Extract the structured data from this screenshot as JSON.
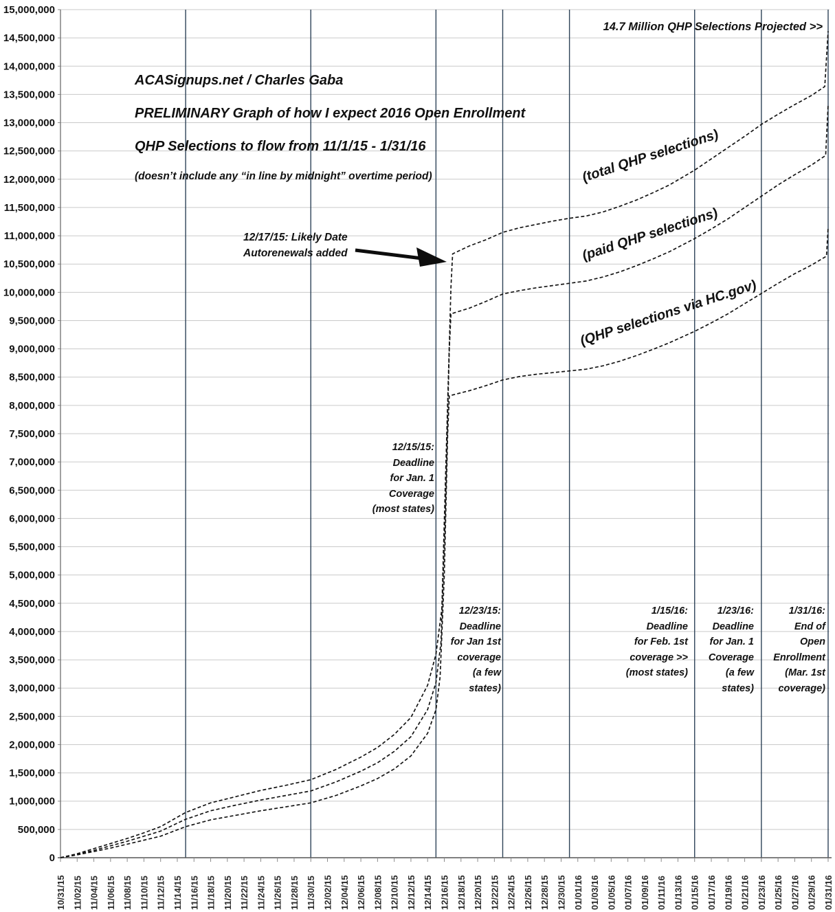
{
  "chart_data": {
    "type": "line",
    "title_lines": [
      "ACASignups.net / Charles Gaba",
      "PRELIMINARY Graph of how I expect 2016 Open Enrollment",
      "QHP Selections to flow from 11/1/15 - 1/31/16",
      "(doesn’t include any “in line by midnight” overtime period)"
    ],
    "projected_note": "14.7 Million QHP Selections Projected >>",
    "autorenewal_note": "12/17/15: Likely Date\nAutorenewals added",
    "deadlines": {
      "dec15": "12/15/15:\nDeadline\nfor Jan. 1\nCoverage\n(most states)",
      "dec23": "12/23/15:\nDeadline\nfor Jan 1st\ncoverage\n(a few\nstates)",
      "jan15": "1/15/16:\nDeadline\nfor Feb. 1st\ncoverage >>\n(most states)",
      "jan23": "1/23/16:\nDeadline\nfor Jan. 1\nCoverage\n(a few\nstates)",
      "jan31": "1/31/16:\nEnd of\nOpen\nEnrollment\n(Mar. 1st\ncoverage)"
    },
    "x_axis": {
      "range_days": [
        0,
        92
      ],
      "days_per_tick": 2,
      "tick_labels": [
        "10/31/15",
        "11/02/15",
        "11/04/15",
        "11/06/15",
        "11/08/15",
        "11/10/15",
        "11/12/15",
        "11/14/15",
        "11/16/15",
        "11/18/15",
        "11/20/15",
        "11/22/15",
        "11/24/15",
        "11/26/15",
        "11/28/15",
        "11/30/15",
        "12/02/15",
        "12/04/15",
        "12/06/15",
        "12/08/15",
        "12/10/15",
        "12/12/15",
        "12/14/15",
        "12/16/15",
        "12/18/15",
        "12/20/15",
        "12/22/15",
        "12/24/15",
        "12/26/15",
        "12/28/15",
        "12/30/15",
        "01/01/16",
        "01/03/16",
        "01/05/16",
        "01/07/16",
        "01/09/16",
        "01/11/16",
        "01/13/16",
        "01/15/16",
        "01/17/16",
        "01/19/16",
        "01/21/16",
        "01/23/16",
        "01/25/16",
        "01/27/16",
        "01/29/16",
        "01/31/16"
      ]
    },
    "y_axis": {
      "min": 0,
      "max": 15000000,
      "step": 500000,
      "tick_labels": [
        "0",
        "500,000",
        "1,000,000",
        "1,500,000",
        "2,000,000",
        "2,500,000",
        "3,000,000",
        "3,500,000",
        "4,000,000",
        "4,500,000",
        "5,000,000",
        "5,500,000",
        "6,000,000",
        "6,500,000",
        "7,000,000",
        "7,500,000",
        "8,000,000",
        "8,500,000",
        "9,000,000",
        "9,500,000",
        "10,000,000",
        "10,500,000",
        "11,000,000",
        "11,500,000",
        "12,000,000",
        "12,500,000",
        "13,000,000",
        "13,500,000",
        "14,000,000",
        "14,500,000",
        "15,000,000"
      ]
    },
    "emphasis_gridline_days": [
      15,
      30,
      45,
      53,
      61,
      76,
      84,
      92
    ],
    "series": [
      {
        "name": "(total QHP selections)",
        "final_value_millions": 14.65,
        "points_day_millions": [
          [
            0,
            0
          ],
          [
            2,
            0.07
          ],
          [
            4,
            0.16
          ],
          [
            6,
            0.25
          ],
          [
            8,
            0.34
          ],
          [
            10,
            0.44
          ],
          [
            12,
            0.55
          ],
          [
            15,
            0.8
          ],
          [
            18,
            0.97
          ],
          [
            21,
            1.08
          ],
          [
            24,
            1.19
          ],
          [
            27,
            1.28
          ],
          [
            30,
            1.38
          ],
          [
            33,
            1.56
          ],
          [
            36,
            1.78
          ],
          [
            38,
            1.95
          ],
          [
            40,
            2.18
          ],
          [
            42,
            2.48
          ],
          [
            44,
            3.05
          ],
          [
            45,
            3.6
          ],
          [
            45.7,
            4.4
          ],
          [
            46.2,
            7.0
          ],
          [
            46.8,
            10.1
          ],
          [
            47,
            10.68
          ],
          [
            49,
            10.82
          ],
          [
            51,
            10.93
          ],
          [
            53,
            11.06
          ],
          [
            55,
            11.14
          ],
          [
            57,
            11.2
          ],
          [
            59,
            11.26
          ],
          [
            61,
            11.31
          ],
          [
            63,
            11.35
          ],
          [
            65,
            11.42
          ],
          [
            67,
            11.52
          ],
          [
            69,
            11.63
          ],
          [
            71,
            11.76
          ],
          [
            73,
            11.9
          ],
          [
            76,
            12.16
          ],
          [
            78,
            12.36
          ],
          [
            80,
            12.56
          ],
          [
            82,
            12.76
          ],
          [
            84,
            12.97
          ],
          [
            86,
            13.15
          ],
          [
            88,
            13.32
          ],
          [
            90,
            13.48
          ],
          [
            91.6,
            13.64
          ],
          [
            92,
            14.62
          ]
        ]
      },
      {
        "name": "(paid QHP selections)",
        "final_value_millions": 13.3,
        "points_day_millions": [
          [
            0,
            0
          ],
          [
            2,
            0.06
          ],
          [
            4,
            0.13
          ],
          [
            6,
            0.21
          ],
          [
            8,
            0.29
          ],
          [
            10,
            0.38
          ],
          [
            12,
            0.47
          ],
          [
            15,
            0.68
          ],
          [
            18,
            0.83
          ],
          [
            21,
            0.93
          ],
          [
            24,
            1.02
          ],
          [
            27,
            1.1
          ],
          [
            30,
            1.18
          ],
          [
            33,
            1.34
          ],
          [
            36,
            1.53
          ],
          [
            38,
            1.68
          ],
          [
            40,
            1.88
          ],
          [
            42,
            2.14
          ],
          [
            44,
            2.62
          ],
          [
            45,
            3.1
          ],
          [
            45.6,
            3.8
          ],
          [
            46.1,
            6.0
          ],
          [
            46.6,
            9.0
          ],
          [
            46.8,
            9.62
          ],
          [
            49,
            9.72
          ],
          [
            51,
            9.84
          ],
          [
            53,
            9.97
          ],
          [
            55,
            10.03
          ],
          [
            57,
            10.08
          ],
          [
            59,
            10.12
          ],
          [
            61,
            10.16
          ],
          [
            63,
            10.2
          ],
          [
            65,
            10.27
          ],
          [
            67,
            10.36
          ],
          [
            69,
            10.47
          ],
          [
            71,
            10.59
          ],
          [
            73,
            10.72
          ],
          [
            76,
            10.95
          ],
          [
            78,
            11.12
          ],
          [
            80,
            11.3
          ],
          [
            82,
            11.5
          ],
          [
            84,
            11.7
          ],
          [
            86,
            11.9
          ],
          [
            88,
            12.08
          ],
          [
            90,
            12.25
          ],
          [
            91.7,
            12.42
          ],
          [
            92,
            13.32
          ]
        ]
      },
      {
        "name": "(QHP selections via HC.gov)",
        "final_value_millions": 11.15,
        "points_day_millions": [
          [
            0,
            0
          ],
          [
            2,
            0.05
          ],
          [
            4,
            0.11
          ],
          [
            6,
            0.17
          ],
          [
            8,
            0.24
          ],
          [
            10,
            0.31
          ],
          [
            12,
            0.38
          ],
          [
            15,
            0.55
          ],
          [
            18,
            0.67
          ],
          [
            21,
            0.75
          ],
          [
            24,
            0.83
          ],
          [
            27,
            0.9
          ],
          [
            30,
            0.97
          ],
          [
            33,
            1.1
          ],
          [
            36,
            1.27
          ],
          [
            38,
            1.4
          ],
          [
            40,
            1.57
          ],
          [
            42,
            1.8
          ],
          [
            44,
            2.2
          ],
          [
            45,
            2.62
          ],
          [
            45.5,
            3.2
          ],
          [
            46,
            5.0
          ],
          [
            46.4,
            7.5
          ],
          [
            46.6,
            8.17
          ],
          [
            49,
            8.26
          ],
          [
            51,
            8.35
          ],
          [
            53,
            8.45
          ],
          [
            55,
            8.51
          ],
          [
            57,
            8.55
          ],
          [
            59,
            8.58
          ],
          [
            61,
            8.61
          ],
          [
            63,
            8.64
          ],
          [
            65,
            8.7
          ],
          [
            67,
            8.78
          ],
          [
            69,
            8.88
          ],
          [
            71,
            8.99
          ],
          [
            73,
            9.11
          ],
          [
            76,
            9.31
          ],
          [
            78,
            9.46
          ],
          [
            80,
            9.62
          ],
          [
            82,
            9.8
          ],
          [
            84,
            9.98
          ],
          [
            86,
            10.16
          ],
          [
            88,
            10.33
          ],
          [
            90,
            10.48
          ],
          [
            91.8,
            10.64
          ],
          [
            92,
            11.15
          ]
        ]
      }
    ],
    "colors": {
      "background": "#ffffff",
      "grid_horizontal": "#c9c9c9",
      "grid_vertical_emphasis": "#2d4257",
      "axis": "#6e6e6e",
      "tick": "#8a8a8a",
      "curve": "#141414",
      "text": "#111111"
    },
    "style": {
      "curve_dash": "dashed",
      "grid": "on",
      "legend": "rotated-inline-labels"
    }
  }
}
